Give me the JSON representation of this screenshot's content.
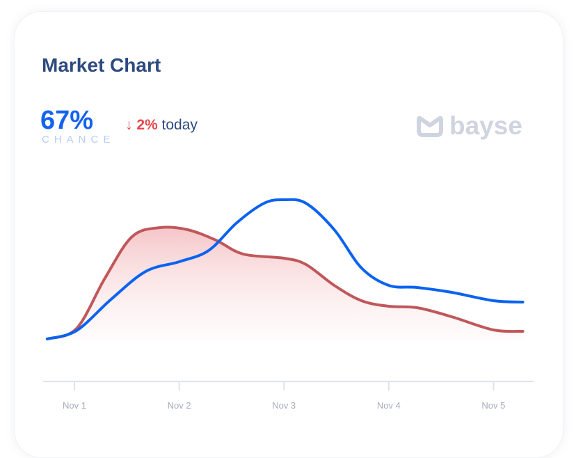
{
  "header": {
    "title": "Market Chart"
  },
  "stats": {
    "chance_value": "67%",
    "chance_label": "CHANCE",
    "change_arrow": "↓",
    "change_value": "2%",
    "change_suffix": "today"
  },
  "logo": {
    "text": "bayse",
    "icon": "bayse-logo-icon"
  },
  "colors": {
    "blue": "#0a63f0",
    "red": "#c0575b",
    "fill": "#f4c7c9"
  },
  "chart_data": {
    "type": "line",
    "title": "",
    "xlabel": "",
    "ylabel": "",
    "x_ticks": [
      "Nov 1",
      "Nov 2",
      "Nov 3",
      "Nov 4",
      "Nov 5"
    ],
    "xlim": [
      0.74,
      5.28
    ],
    "ylim": [
      0,
      100
    ],
    "grid": false,
    "legend": "none",
    "series": [
      {
        "color": "blue",
        "area": false,
        "x": [
          0.74,
          1.02,
          1.35,
          1.68,
          2.0,
          2.28,
          2.55,
          2.81,
          3.0,
          3.21,
          3.48,
          3.74,
          4.0,
          4.27,
          4.6,
          5.0,
          5.28
        ],
        "y": [
          0,
          4.8,
          22.8,
          38.8,
          44.4,
          50.8,
          66.8,
          78,
          80,
          78,
          62.8,
          40.8,
          30.8,
          29.6,
          26.8,
          22,
          21.2
        ]
      },
      {
        "color": "red",
        "area": true,
        "x": [
          0.74,
          1.02,
          1.29,
          1.55,
          1.82,
          2.08,
          2.35,
          2.61,
          3.0,
          3.21,
          3.48,
          3.74,
          4.0,
          4.27,
          4.6,
          5.0,
          5.28
        ],
        "y": [
          0,
          6,
          34.8,
          58.8,
          64,
          62.8,
          56.8,
          48.8,
          46.4,
          42.8,
          30.8,
          22,
          18.8,
          18,
          12.8,
          5.2,
          4.4
        ]
      }
    ]
  }
}
